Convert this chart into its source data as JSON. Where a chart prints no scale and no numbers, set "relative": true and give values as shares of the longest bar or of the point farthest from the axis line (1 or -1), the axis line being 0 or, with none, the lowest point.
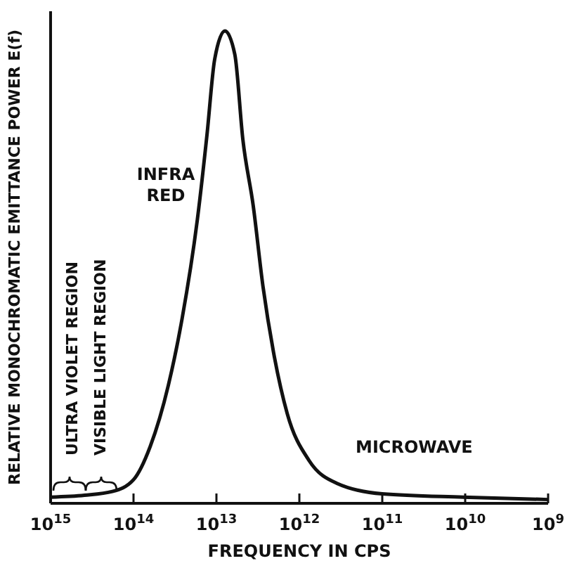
{
  "chart_data": {
    "type": "line",
    "relative": true,
    "log": "x",
    "xlabel": "FREQUENCY IN CPS",
    "ylabel": "RELATIVE MONOCHROMATIC EMITTANCE POWER E(f)",
    "xlim": [
      1000000000000000.0,
      1000000000.0
    ],
    "xticks": [
      {
        "value": 1000000000000000.0,
        "label": "10$^{15}$"
      },
      {
        "value": 100000000000000.0,
        "label": "10$^{14}$"
      },
      {
        "value": 10000000000000.0,
        "label": "10$^{13}$"
      },
      {
        "value": 1000000000000.0,
        "label": "10$^{12}$"
      },
      {
        "value": 100000000000.0,
        "label": "10$^{11}$"
      },
      {
        "value": 10000000000.0,
        "label": "10$^{10}$"
      },
      {
        "value": 1000000000.0,
        "label": "10$^{9}$"
      }
    ],
    "x": [
      1000000000000000.0,
      390000000000000.0,
      180000000000000.0,
      100000000000000.0,
      63000000000000.0,
      38000000000000.0,
      26000000000000.0,
      17000000000000.0,
      13000000000000.0,
      10500000000000.0,
      7900000000000.0,
      6000000000000.0,
      4800000000000.0,
      3600000000000.0,
      2750000000000.0,
      2050000000000.0,
      1400000000000.0,
      760000000000.0,
      350000000000.0,
      100000000000.0,
      10500000000.0,
      1000000000.0
    ],
    "series": [
      {
        "color": "#111111",
        "values": [
          0.013,
          0.017,
          0.025,
          0.05,
          0.12,
          0.25,
          0.39,
          0.6,
          0.78,
          0.94,
          1.0,
          0.95,
          0.77,
          0.63,
          0.46,
          0.32,
          0.19,
          0.09,
          0.042,
          0.02,
          0.013,
          0.008
        ]
      }
    ],
    "marker": "none",
    "grid": false,
    "annotations": [
      "INFRA RED",
      "MICROWAVE",
      "ULTRA VIOLET REGION",
      "VISIBLE LIGHT REGION"
    ]
  }
}
